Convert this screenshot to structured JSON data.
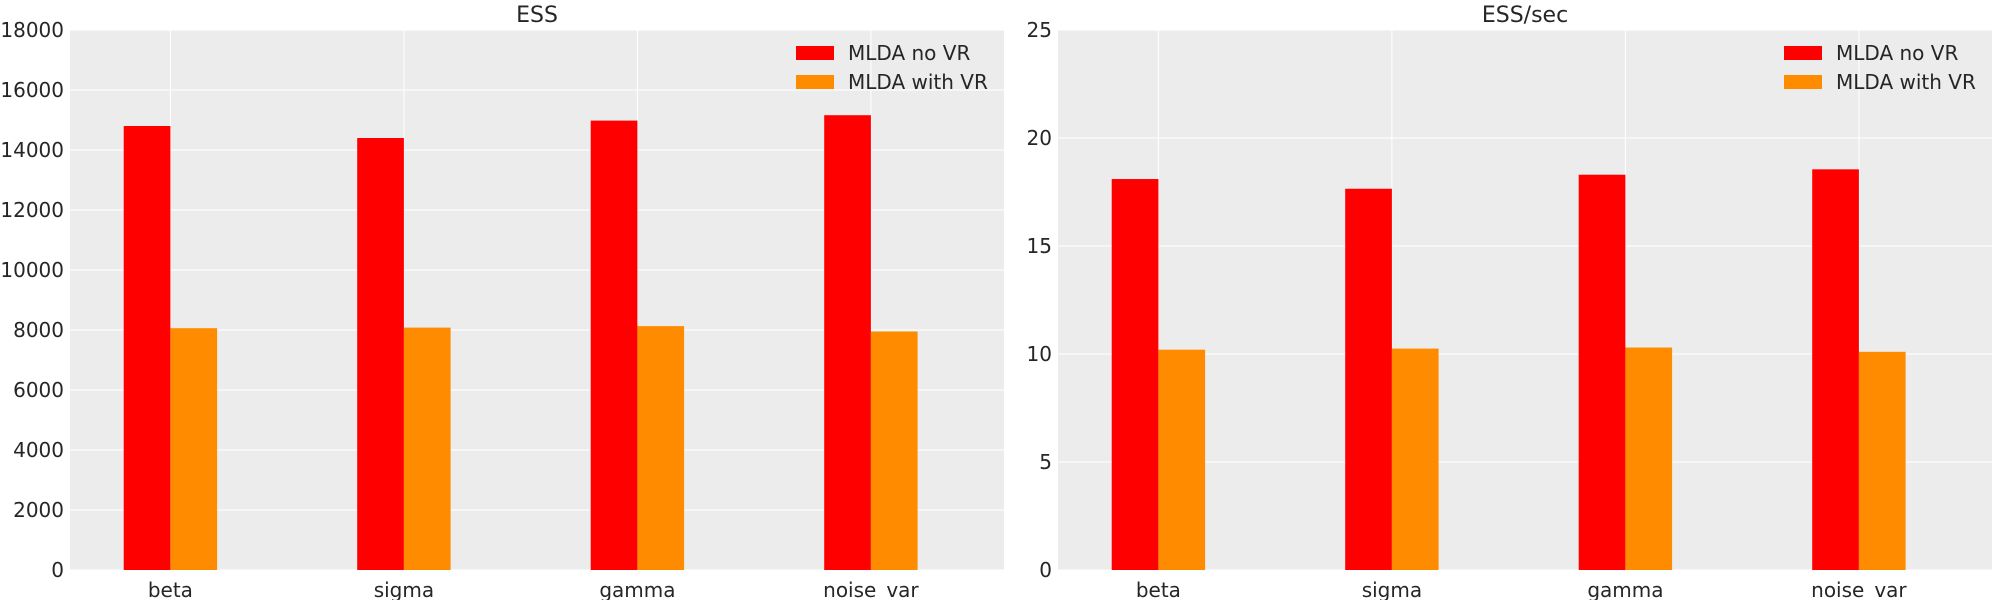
{
  "chart_data": [
    {
      "type": "bar",
      "title": "ESS",
      "xlabel": "",
      "ylabel": "",
      "categories": [
        "beta",
        "sigma",
        "gamma",
        "noise_var"
      ],
      "series": [
        {
          "name": "MLDA no VR",
          "color": "#ff0000",
          "values": [
            14800,
            14400,
            14980,
            15160
          ]
        },
        {
          "name": "MLDA with VR",
          "color": "#ff8c00",
          "values": [
            8060,
            8080,
            8130,
            7950
          ]
        }
      ],
      "ylim": [
        0,
        18000
      ],
      "yticks": [
        0,
        2000,
        4000,
        6000,
        8000,
        10000,
        12000,
        14000,
        16000,
        18000
      ],
      "grid": true,
      "legend_position": "top-right",
      "background": "#ececec",
      "grid_color": "#ffffff"
    },
    {
      "type": "bar",
      "title": "ESS/sec",
      "xlabel": "",
      "ylabel": "",
      "categories": [
        "beta",
        "sigma",
        "gamma",
        "noise_var"
      ],
      "series": [
        {
          "name": "MLDA no VR",
          "color": "#ff0000",
          "values": [
            18.1,
            17.65,
            18.3,
            18.55
          ]
        },
        {
          "name": "MLDA with VR",
          "color": "#ff8c00",
          "values": [
            10.2,
            10.25,
            10.3,
            10.1
          ]
        }
      ],
      "ylim": [
        0,
        25
      ],
      "yticks": [
        0,
        5,
        10,
        15,
        20,
        25
      ],
      "grid": true,
      "legend_position": "top-right",
      "background": "#ececec",
      "grid_color": "#ffffff"
    }
  ]
}
